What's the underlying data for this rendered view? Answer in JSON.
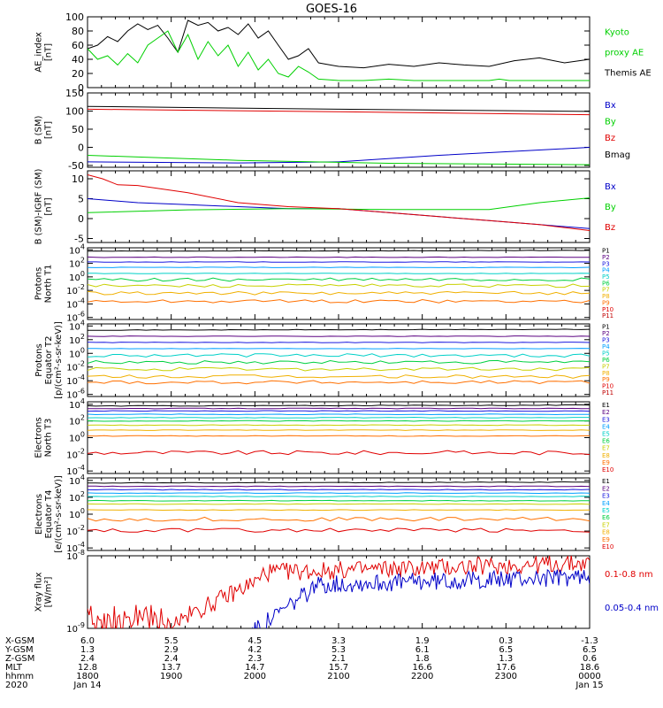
{
  "title": "GOES-16",
  "colors": {
    "black": "#000000",
    "red": "#e00000",
    "green": "#00d000",
    "blue": "#0000c8",
    "pal": [
      "#000000",
      "#5a0080",
      "#1a1ae0",
      "#00a0ff",
      "#00d0c8",
      "#00d040",
      "#c8d000",
      "#f0b000",
      "#ff7000",
      "#e00000",
      "#c00000"
    ]
  },
  "chart_data": [
    {
      "type": "line",
      "panel": "ae",
      "ylabel_lines": [
        "AE_index",
        "[nT]"
      ],
      "ylim": [
        0,
        100
      ],
      "yticks": [
        {
          "v": 0,
          "t": "0"
        },
        {
          "v": 20,
          "t": "20"
        },
        {
          "v": 40,
          "t": "40"
        },
        {
          "v": 60,
          "t": "60"
        },
        {
          "v": 80,
          "t": "80"
        },
        {
          "v": 100,
          "t": "100"
        }
      ],
      "series": [
        {
          "name": "Themis AE",
          "color": "black",
          "x": [
            0,
            0.02,
            0.04,
            0.06,
            0.08,
            0.1,
            0.12,
            0.14,
            0.16,
            0.18,
            0.2,
            0.22,
            0.24,
            0.26,
            0.28,
            0.3,
            0.32,
            0.34,
            0.36,
            0.38,
            0.4,
            0.42,
            0.44,
            0.46,
            0.5,
            0.55,
            0.6,
            0.65,
            0.7,
            0.75,
            0.8,
            0.85,
            0.9,
            0.95,
            1.0
          ],
          "y": [
            55,
            60,
            72,
            65,
            80,
            90,
            82,
            88,
            70,
            50,
            95,
            88,
            92,
            80,
            85,
            75,
            90,
            70,
            80,
            60,
            40,
            45,
            55,
            35,
            30,
            28,
            33,
            30,
            35,
            32,
            30,
            38,
            42,
            35,
            40
          ]
        },
        {
          "name": "Kyoto proxy AE",
          "color": "green",
          "x": [
            0,
            0.02,
            0.04,
            0.06,
            0.08,
            0.1,
            0.12,
            0.14,
            0.16,
            0.18,
            0.2,
            0.22,
            0.24,
            0.26,
            0.28,
            0.3,
            0.32,
            0.34,
            0.36,
            0.38,
            0.4,
            0.42,
            0.44,
            0.46,
            0.5,
            0.55,
            0.6,
            0.65,
            0.7,
            0.75,
            0.8,
            0.82,
            0.84,
            0.9,
            0.95,
            1.0
          ],
          "y": [
            55,
            40,
            45,
            32,
            48,
            35,
            60,
            70,
            80,
            50,
            75,
            40,
            65,
            45,
            60,
            30,
            50,
            25,
            40,
            20,
            15,
            30,
            22,
            12,
            10,
            10,
            12,
            10,
            10,
            10,
            10,
            12,
            10,
            10,
            10,
            10
          ]
        }
      ],
      "labels": [
        {
          "text": "Kyoto",
          "color": "green"
        },
        {
          "text": "proxy AE",
          "color": "green"
        },
        {
          "text": "Themis AE",
          "color": "black"
        }
      ]
    },
    {
      "type": "line",
      "panel": "bsm",
      "ylabel_lines": [
        "B (SM)",
        "[nT]"
      ],
      "ylim": [
        -55,
        150
      ],
      "yticks": [
        {
          "v": -50,
          "t": "-50"
        },
        {
          "v": 0,
          "t": "0"
        },
        {
          "v": 50,
          "t": "50"
        },
        {
          "v": 100,
          "t": "100"
        },
        {
          "v": 150,
          "t": "150"
        }
      ],
      "series": [
        {
          "name": "Bx",
          "color": "blue",
          "x": [
            0,
            0.3,
            0.5,
            0.7,
            1.0
          ],
          "y": [
            -40,
            -43,
            -40,
            -22,
            0
          ]
        },
        {
          "name": "By",
          "color": "green",
          "x": [
            0,
            0.3,
            0.6,
            1.0
          ],
          "y": [
            -22,
            -36,
            -44,
            -48
          ]
        },
        {
          "name": "Bz",
          "color": "red",
          "x": [
            0,
            0.5,
            1.0
          ],
          "y": [
            105,
            98,
            90
          ]
        },
        {
          "name": "Bmag",
          "color": "black",
          "x": [
            0,
            0.5,
            1.0
          ],
          "y": [
            113,
            105,
            99
          ]
        }
      ],
      "labels": [
        {
          "text": "Bx",
          "color": "blue"
        },
        {
          "text": "By",
          "color": "green"
        },
        {
          "text": "Bz",
          "color": "red"
        },
        {
          "text": "Bmag",
          "color": "black"
        }
      ]
    },
    {
      "type": "line",
      "panel": "bigrf",
      "ylabel_lines": [
        "B (SM)-IGRF (SM)",
        "[nT]"
      ],
      "ylim": [
        -6,
        12
      ],
      "yticks": [
        {
          "v": -5,
          "t": "-5"
        },
        {
          "v": 0,
          "t": "0"
        },
        {
          "v": 5,
          "t": "5"
        },
        {
          "v": 10,
          "t": "10"
        }
      ],
      "series": [
        {
          "name": "Bx",
          "color": "blue",
          "x": [
            0,
            0.05,
            0.1,
            0.2,
            0.3,
            0.4,
            0.5,
            0.6,
            0.7,
            0.8,
            0.9,
            1.0
          ],
          "y": [
            5,
            4.5,
            4,
            3.5,
            3,
            2.5,
            2.5,
            1.5,
            0.5,
            -0.5,
            -1.5,
            -2.5
          ]
        },
        {
          "name": "By",
          "color": "green",
          "x": [
            0,
            0.2,
            0.4,
            0.6,
            0.8,
            0.9,
            1.0
          ],
          "y": [
            1.5,
            2.2,
            2.5,
            2.3,
            2.3,
            4,
            5.2
          ]
        },
        {
          "name": "Bz",
          "color": "red",
          "x": [
            0,
            0.03,
            0.06,
            0.1,
            0.2,
            0.3,
            0.4,
            0.5,
            0.6,
            0.7,
            0.8,
            0.9,
            1.0
          ],
          "y": [
            11,
            10,
            8.5,
            8.3,
            6.5,
            4,
            3,
            2.5,
            1.5,
            0.5,
            -0.5,
            -1.5,
            -3
          ]
        }
      ],
      "labels": [
        {
          "text": "Bx",
          "color": "blue"
        },
        {
          "text": "By",
          "color": "green"
        },
        {
          "text": "Bz",
          "color": "red"
        }
      ]
    },
    {
      "type": "line",
      "panel": "pnorth",
      "yscale": "log",
      "ylabel_lines": [
        "Protons",
        "North T1"
      ],
      "ylim": [
        -6.3,
        4.3
      ],
      "yticks": [
        {
          "v": 4,
          "t": "10",
          "e": "4"
        },
        {
          "v": 2,
          "t": "10",
          "e": "2"
        },
        {
          "v": 0,
          "t": "10",
          "e": "0"
        },
        {
          "v": -2,
          "t": "10",
          "e": "-2"
        },
        {
          "v": -4,
          "t": "10",
          "e": "-4"
        },
        {
          "v": -6,
          "t": "10",
          "e": "-6"
        }
      ],
      "levels": [
        3.8,
        2.9,
        2.2,
        1.4,
        0.5,
        -0.4,
        -1.3,
        -2.4,
        -3.6
      ],
      "series_names": [
        "P1",
        "P2",
        "P3",
        "P4",
        "P5",
        "P6",
        "P7",
        "P8",
        "P9",
        "P10",
        "P11"
      ]
    },
    {
      "type": "line",
      "panel": "peq",
      "yscale": "log",
      "ylabel_lines": [
        "Protons",
        "Equator T2",
        "[p/(cm²-s-sr-keV)]"
      ],
      "ylim": [
        -6.3,
        4.3
      ],
      "yticks": [
        {
          "v": 4,
          "t": "10",
          "e": "4"
        },
        {
          "v": 2,
          "t": "10",
          "e": "2"
        },
        {
          "v": 0,
          "t": "10",
          "e": "0"
        },
        {
          "v": -2,
          "t": "10",
          "e": "-2"
        },
        {
          "v": -4,
          "t": "10",
          "e": "-4"
        },
        {
          "v": -6,
          "t": "10",
          "e": "-6"
        }
      ],
      "levels": [
        3.4,
        2.5,
        1.6,
        0.7,
        -0.3,
        -1.3,
        -2.3,
        -3.4,
        -4.2
      ],
      "series_names": [
        "P1",
        "P2",
        "P3",
        "P4",
        "P5",
        "P6",
        "P7",
        "P8",
        "P9",
        "P10",
        "P11"
      ]
    },
    {
      "type": "line",
      "panel": "enorth",
      "yscale": "log",
      "ylabel_lines": [
        "Electrons",
        "North T3"
      ],
      "ylim": [
        -4.3,
        4.3
      ],
      "yticks": [
        {
          "v": 4,
          "t": "10",
          "e": "4"
        },
        {
          "v": 2,
          "t": "10",
          "e": "2"
        },
        {
          "v": 0,
          "t": "10",
          "e": "0"
        },
        {
          "v": -2,
          "t": "10",
          "e": "-2"
        },
        {
          "v": -4,
          "t": "10",
          "e": "-4"
        }
      ],
      "levels": [
        3.8,
        3.5,
        3.2,
        2.8,
        2.4,
        2.0,
        1.5,
        0.9,
        0.2,
        -1.8
      ],
      "series_names": [
        "E1",
        "E2",
        "E3",
        "E4",
        "E5",
        "E6",
        "E7",
        "E8",
        "E9",
        "E10"
      ]
    },
    {
      "type": "line",
      "panel": "eeq",
      "yscale": "log",
      "ylabel_lines": [
        "Electrons",
        "Equator T4",
        "[e/(cm²-s-sr-keV)]"
      ],
      "ylim": [
        -4.3,
        4.3
      ],
      "yticks": [
        {
          "v": 4,
          "t": "10",
          "e": "4"
        },
        {
          "v": 2,
          "t": "10",
          "e": "2"
        },
        {
          "v": 0,
          "t": "10",
          "e": "0"
        },
        {
          "v": -2,
          "t": "10",
          "e": "-2"
        },
        {
          "v": -4,
          "t": "10",
          "e": "-4"
        }
      ],
      "levels": [
        3.7,
        3.3,
        2.9,
        2.5,
        2.1,
        1.6,
        1.2,
        0.5,
        -0.6,
        -1.9
      ],
      "series_names": [
        "E1",
        "E2",
        "E3",
        "E4",
        "E5",
        "E6",
        "E7",
        "E8",
        "E9",
        "E10"
      ]
    },
    {
      "type": "line",
      "panel": "xray",
      "yscale": "log",
      "ylabel_lines": [
        "Xray flux",
        "[W/m²]"
      ],
      "ylim": [
        -9,
        -8
      ],
      "yticks": [
        {
          "v": -8,
          "t": "10",
          "e": "-8"
        },
        {
          "v": -9,
          "t": "10",
          "e": "-9"
        }
      ],
      "series": [
        {
          "name": "0.1-0.8 nm",
          "color": "red"
        },
        {
          "name": "0.05-0.4 nm",
          "color": "blue"
        }
      ]
    }
  ],
  "xaxis": {
    "ticks": [
      "1800",
      "1900",
      "2000",
      "2100",
      "2200",
      "2300",
      "0000"
    ],
    "rows": [
      {
        "label": "X-GSM",
        "values": [
          "6.0",
          "5.5",
          "4.5",
          "3.3",
          "1.9",
          "0.3",
          "-1.3"
        ]
      },
      {
        "label": "Y-GSM",
        "values": [
          "1.3",
          "2.9",
          "4.2",
          "5.3",
          "6.1",
          "6.5",
          "6.5"
        ]
      },
      {
        "label": "Z-GSM",
        "values": [
          "2.4",
          "2.4",
          "2.3",
          "2.1",
          "1.8",
          "1.3",
          "0.6"
        ]
      },
      {
        "label": "MLT",
        "values": [
          "12.8",
          "13.7",
          "14.7",
          "15.7",
          "16.6",
          "17.6",
          "18.6"
        ]
      },
      {
        "label": "hhmm",
        "values": [
          "1800",
          "1900",
          "2000",
          "2100",
          "2200",
          "2300",
          "0000"
        ]
      }
    ],
    "year": "2020",
    "start_date": "Jan 14",
    "end_date": "Jan 15"
  }
}
